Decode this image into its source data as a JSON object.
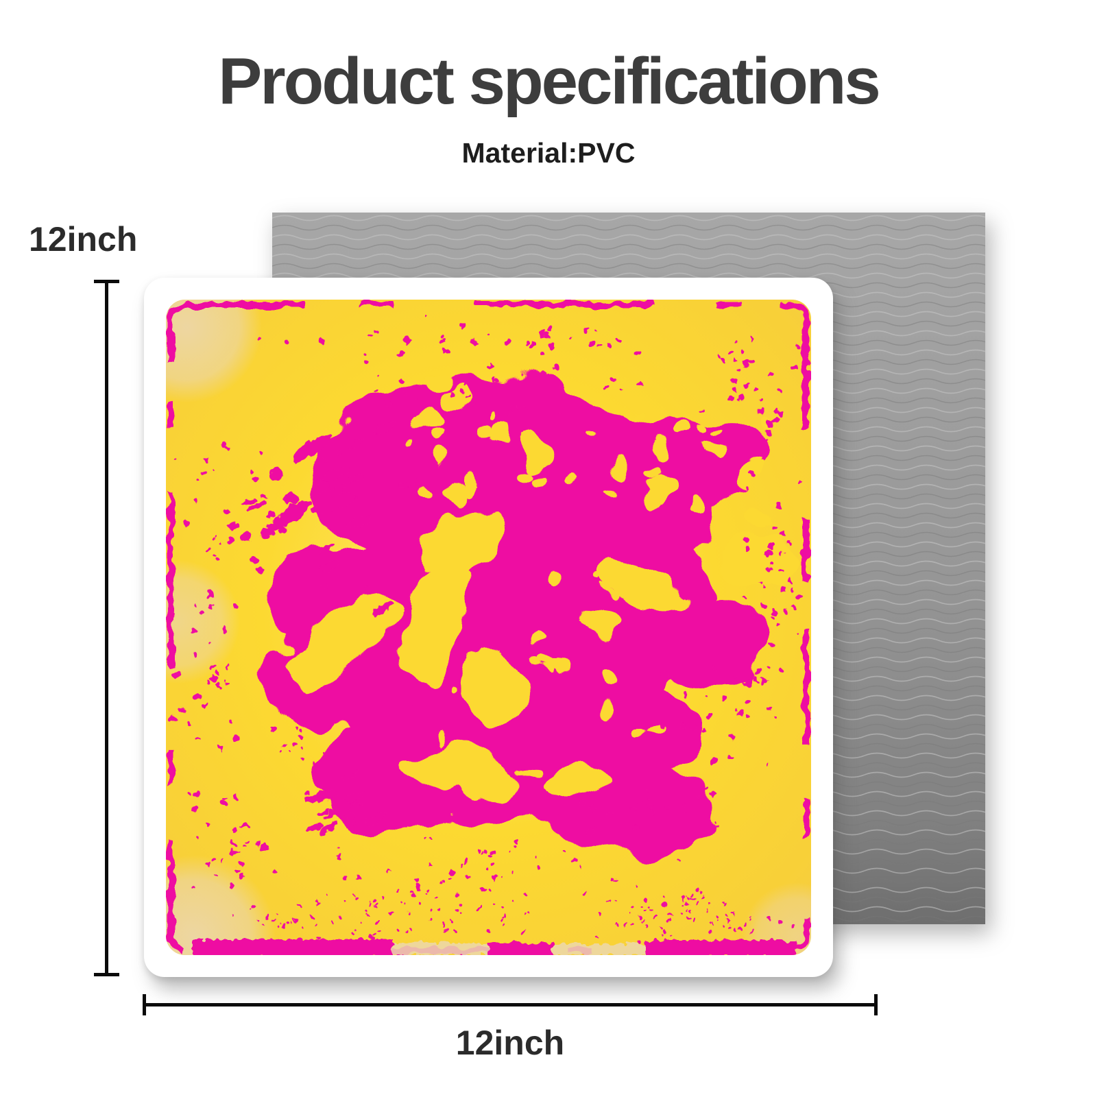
{
  "header": {
    "title": "Product specifications",
    "material_label": "Material:PVC"
  },
  "dimensions": {
    "height_label": "12inch",
    "width_label": "12inch"
  },
  "colors": {
    "magenta": "#ee10a2",
    "yellow": "#fcd931",
    "yellow_light": "#ffe76e",
    "yellow_edge": "#f2c94b",
    "beige": "#ecd7ad",
    "mat_top": "#a7a7a7",
    "mat_bottom": "#6e6e6e",
    "title_text": "#3d3d3d",
    "body_text": "#1d1d1d",
    "dim_line": "#0b0b0b"
  }
}
